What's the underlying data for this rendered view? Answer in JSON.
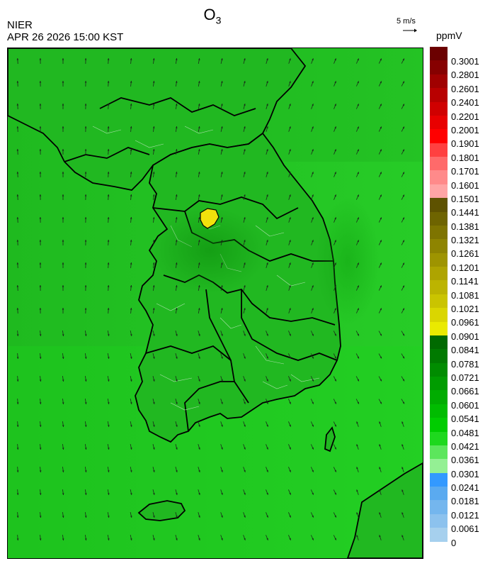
{
  "header": {
    "title_main": "O",
    "title_sub": "3",
    "agency": "NIER",
    "datetime": "APR 26 2026 15:00 KST",
    "wind_scale_label": "5 m/s",
    "unit": "ppmV"
  },
  "colorbar": {
    "labels": [
      "0.3001",
      "0.2801",
      "0.2601",
      "0.2401",
      "0.2201",
      "0.2001",
      "0.1901",
      "0.1801",
      "0.1701",
      "0.1601",
      "0.1501",
      "0.1441",
      "0.1381",
      "0.1321",
      "0.1261",
      "0.1201",
      "0.1141",
      "0.1081",
      "0.1021",
      "0.0961",
      "0.0901",
      "0.0841",
      "0.0781",
      "0.0721",
      "0.0661",
      "0.0601",
      "0.0541",
      "0.0481",
      "0.0421",
      "0.0361",
      "0.0301",
      "0.0241",
      "0.0181",
      "0.0121",
      "0.0061",
      "0"
    ],
    "colors": [
      "#6b0000",
      "#860000",
      "#a00000",
      "#b80000",
      "#d00000",
      "#e80000",
      "#ff0000",
      "#ff4040",
      "#ff6a6a",
      "#ff8a8a",
      "#ffa5a5",
      "#5e5200",
      "#6e6400",
      "#7e7400",
      "#8e8400",
      "#9e9400",
      "#aea400",
      "#bcb400",
      "#cac400",
      "#dad600",
      "#eaea00",
      "#006a00",
      "#007a00",
      "#008c00",
      "#009c00",
      "#00ac00",
      "#00bc00",
      "#00cc00",
      "#1ed81e",
      "#5ce65c",
      "#94f094",
      "#3399ff",
      "#5aaaf0",
      "#74b6ee",
      "#8cc2ee",
      "#a6d0ee"
    ]
  },
  "map": {
    "background_color": "#22c422",
    "land_color": "#21b821",
    "outline_color": "#000000",
    "hotspot_color": "#f2e20c",
    "wind_arrow_color": "#1a2a1a"
  }
}
